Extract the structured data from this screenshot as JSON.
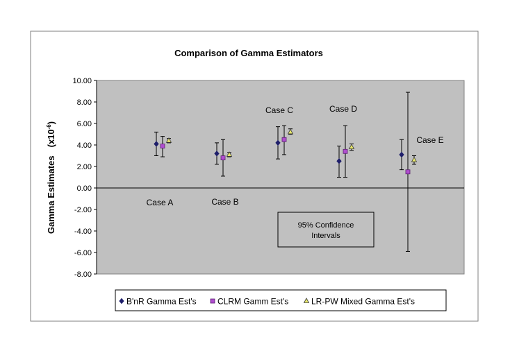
{
  "chart_data": {
    "type": "scatter",
    "title": "Comparison of Gamma Estimators",
    "ylabel": "Gamma Estimates",
    "ylabel_unit_base": "(x10",
    "ylabel_unit_exp": "-6",
    "ylabel_unit_close": ")",
    "ylim": [
      -8,
      10
    ],
    "yticks": [
      10,
      8,
      6,
      4,
      2,
      0,
      -2,
      -4,
      -6,
      -8
    ],
    "ytick_labels": [
      "10.00",
      "8.00",
      "6.00",
      "4.00",
      "2.00",
      "0.00",
      "-2.00",
      "-4.00",
      "-6.00",
      "-8.00"
    ],
    "grid": false,
    "legend_position": "bottom",
    "cases": [
      "Case A",
      "Case B",
      "Case C",
      "Case D",
      "Case E"
    ],
    "annotation": {
      "line1": "95% Confidence",
      "line2": "Intervals"
    },
    "series": [
      {
        "name": "B'nR Gamma Est's",
        "marker": "diamond",
        "color": "#1f1f6b",
        "values": [
          4.1,
          3.2,
          4.2,
          2.5,
          3.1
        ],
        "lower": [
          3.0,
          2.2,
          2.7,
          1.0,
          1.7
        ],
        "upper": [
          5.2,
          4.2,
          5.7,
          3.9,
          4.5
        ]
      },
      {
        "name": "CLRM Gamm Est's",
        "marker": "square",
        "color": "#b04fcf",
        "values": [
          3.9,
          2.8,
          4.5,
          3.4,
          1.5
        ],
        "lower": [
          2.9,
          1.1,
          3.1,
          1.0,
          -5.9
        ],
        "upper": [
          4.8,
          4.5,
          5.8,
          5.8,
          8.9
        ]
      },
      {
        "name": "LR-PW Mixed Gamma Est's",
        "marker": "triangle",
        "color": "#e8e86a",
        "values": [
          4.4,
          3.1,
          5.2,
          3.8,
          2.6
        ],
        "lower": [
          4.2,
          2.9,
          5.0,
          3.5,
          2.2
        ],
        "upper": [
          4.6,
          3.3,
          5.5,
          4.1,
          3.0
        ]
      }
    ]
  }
}
